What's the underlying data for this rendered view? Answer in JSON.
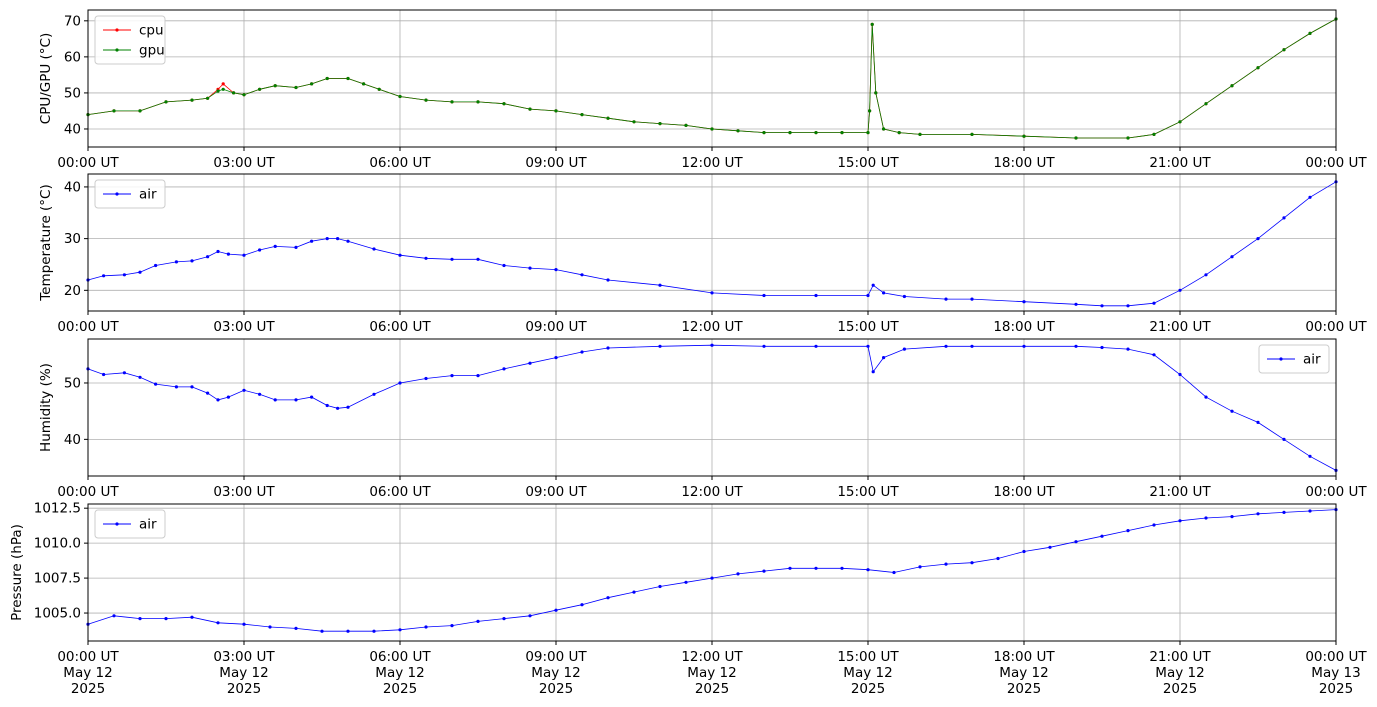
{
  "chart_data": [
    {
      "type": "line",
      "ylabel": "CPU/GPU (°C)",
      "ylim": [
        35,
        73
      ],
      "yticks": [
        40,
        50,
        60,
        70
      ],
      "x_unit": "hours since 00:00 UT May 12 2025",
      "xlim": [
        0,
        24
      ],
      "xtick_labels": [
        "00:00 UT",
        "03:00 UT",
        "06:00 UT",
        "09:00 UT",
        "12:00 UT",
        "15:00 UT",
        "18:00 UT",
        "21:00 UT",
        "00:00 UT"
      ],
      "grid": true,
      "legend": "top-left",
      "series": [
        {
          "name": "cpu",
          "color": "#ff0000",
          "x": [
            0,
            0.5,
            1,
            1.5,
            2,
            2.3,
            2.5,
            2.6,
            2.8,
            3,
            3.3,
            3.6,
            4,
            4.3,
            4.6,
            5,
            5.3,
            5.6,
            6,
            6.5,
            7,
            7.5,
            8,
            8.5,
            9,
            9.5,
            10,
            10.5,
            11,
            11.5,
            12,
            12.5,
            13,
            13.5,
            14,
            14.5,
            15,
            15.03,
            15.08,
            15.15,
            15.3,
            15.6,
            16,
            17,
            18,
            19,
            20,
            20.5,
            21,
            21.5,
            22,
            22.5,
            23,
            23.5,
            24
          ],
          "values": [
            44,
            45,
            45,
            47.5,
            48,
            48.5,
            51,
            52.5,
            50,
            49.5,
            51,
            52,
            51.5,
            52.5,
            54,
            54,
            52.5,
            51,
            49,
            48,
            47.5,
            47.5,
            47,
            45.5,
            45,
            44,
            43,
            42,
            41.5,
            41,
            40,
            39.5,
            39,
            39,
            39,
            39,
            39,
            45,
            69,
            50,
            40,
            39,
            38.5,
            38.5,
            38,
            37.5,
            37.5,
            38.5,
            42,
            47,
            52,
            57,
            62,
            66.5,
            70.5
          ]
        },
        {
          "name": "gpu",
          "color": "#008000",
          "x": [
            0,
            0.5,
            1,
            1.5,
            2,
            2.3,
            2.5,
            2.6,
            2.8,
            3,
            3.3,
            3.6,
            4,
            4.3,
            4.6,
            5,
            5.3,
            5.6,
            6,
            6.5,
            7,
            7.5,
            8,
            8.5,
            9,
            9.5,
            10,
            10.5,
            11,
            11.5,
            12,
            12.5,
            13,
            13.5,
            14,
            14.5,
            15,
            15.03,
            15.08,
            15.15,
            15.3,
            15.6,
            16,
            17,
            18,
            19,
            20,
            20.5,
            21,
            21.5,
            22,
            22.5,
            23,
            23.5,
            24
          ],
          "values": [
            44,
            45,
            45,
            47.5,
            48,
            48.5,
            50.5,
            51,
            50,
            49.5,
            51,
            52,
            51.5,
            52.5,
            54,
            54,
            52.5,
            51,
            49,
            48,
            47.5,
            47.5,
            47,
            45.5,
            45,
            44,
            43,
            42,
            41.5,
            41,
            40,
            39.5,
            39,
            39,
            39,
            39,
            39,
            45,
            69,
            50,
            40,
            39,
            38.5,
            38.5,
            38,
            37.5,
            37.5,
            38.5,
            42,
            47,
            52,
            57,
            62,
            66.5,
            70.5
          ]
        }
      ]
    },
    {
      "type": "line",
      "ylabel": "Temperature (°C)",
      "ylim": [
        16,
        42.5
      ],
      "yticks": [
        20,
        30,
        40
      ],
      "x_unit": "hours since 00:00 UT May 12 2025",
      "xlim": [
        0,
        24
      ],
      "xtick_labels": [
        "00:00 UT",
        "03:00 UT",
        "06:00 UT",
        "09:00 UT",
        "12:00 UT",
        "15:00 UT",
        "18:00 UT",
        "21:00 UT",
        "00:00 UT"
      ],
      "grid": true,
      "legend": "top-left",
      "series": [
        {
          "name": "air",
          "color": "#0000ff",
          "x": [
            0,
            0.3,
            0.7,
            1,
            1.3,
            1.7,
            2,
            2.3,
            2.5,
            2.7,
            3,
            3.3,
            3.6,
            4,
            4.3,
            4.6,
            4.8,
            5,
            5.5,
            6,
            6.5,
            7,
            7.5,
            8,
            8.5,
            9,
            9.5,
            10,
            11,
            12,
            13,
            14,
            15,
            15.1,
            15.3,
            15.7,
            16.5,
            17,
            18,
            19,
            19.5,
            20,
            20.5,
            21,
            21.5,
            22,
            22.5,
            23,
            23.5,
            24
          ],
          "values": [
            22,
            22.8,
            23,
            23.5,
            24.8,
            25.5,
            25.7,
            26.5,
            27.5,
            27,
            26.8,
            27.8,
            28.5,
            28.3,
            29.5,
            30,
            30,
            29.5,
            28,
            26.8,
            26.2,
            26,
            26,
            24.8,
            24.3,
            24,
            23,
            22,
            21,
            19.5,
            19,
            19,
            19,
            21,
            19.5,
            18.8,
            18.3,
            18.3,
            17.8,
            17.3,
            17,
            17,
            17.5,
            20,
            23,
            26.5,
            30,
            34,
            38,
            41
          ]
        }
      ]
    },
    {
      "type": "line",
      "ylabel": "Humidity (%)",
      "ylim": [
        33.5,
        57.8
      ],
      "yticks": [
        40,
        50
      ],
      "x_unit": "hours since 00:00 UT May 12 2025",
      "xlim": [
        0,
        24
      ],
      "xtick_labels": [
        "00:00 UT",
        "03:00 UT",
        "06:00 UT",
        "09:00 UT",
        "12:00 UT",
        "15:00 UT",
        "18:00 UT",
        "21:00 UT",
        "00:00 UT"
      ],
      "grid": true,
      "legend": "top-right",
      "series": [
        {
          "name": "air",
          "color": "#0000ff",
          "x": [
            0,
            0.3,
            0.7,
            1,
            1.3,
            1.7,
            2,
            2.3,
            2.5,
            2.7,
            3,
            3.3,
            3.6,
            4,
            4.3,
            4.6,
            4.8,
            5,
            5.5,
            6,
            6.5,
            7,
            7.5,
            8,
            8.5,
            9,
            9.5,
            10,
            11,
            12,
            13,
            14,
            15,
            15.1,
            15.3,
            15.7,
            16.5,
            17,
            18,
            19,
            19.5,
            20,
            20.5,
            21,
            21.5,
            22,
            22.5,
            23,
            23.5,
            24
          ],
          "values": [
            52.5,
            51.5,
            51.8,
            51,
            49.8,
            49.3,
            49.3,
            48.2,
            47,
            47.5,
            48.7,
            48,
            47,
            47,
            47.5,
            46,
            45.5,
            45.7,
            48,
            50,
            50.8,
            51.3,
            51.3,
            52.5,
            53.5,
            54.5,
            55.5,
            56.2,
            56.5,
            56.7,
            56.5,
            56.5,
            56.5,
            52,
            54.5,
            56,
            56.5,
            56.5,
            56.5,
            56.5,
            56.3,
            56,
            55,
            51.5,
            47.5,
            45,
            43,
            40,
            37,
            34.5
          ]
        }
      ]
    },
    {
      "type": "line",
      "ylabel": "Pressure (hPa)",
      "ylim": [
        1003,
        1012.8
      ],
      "yticks": [
        1005,
        1007.5,
        1010,
        1012.5
      ],
      "ytick_labels": [
        "1005.0",
        "1007.5",
        "1010.0",
        "1012.5"
      ],
      "x_unit": "hours since 00:00 UT May 12 2025",
      "xlim": [
        0,
        24
      ],
      "xtick_labels": [
        [
          "00:00 UT",
          "May 12",
          "2025"
        ],
        [
          "03:00 UT",
          "May 12",
          "2025"
        ],
        [
          "06:00 UT",
          "May 12",
          "2025"
        ],
        [
          "09:00 UT",
          "May 12",
          "2025"
        ],
        [
          "12:00 UT",
          "May 12",
          "2025"
        ],
        [
          "15:00 UT",
          "May 12",
          "2025"
        ],
        [
          "18:00 UT",
          "May 12",
          "2025"
        ],
        [
          "21:00 UT",
          "May 12",
          "2025"
        ],
        [
          "00:00 UT",
          "May 13",
          "2025"
        ]
      ],
      "grid": true,
      "legend": "top-left",
      "series": [
        {
          "name": "air",
          "color": "#0000ff",
          "x": [
            0,
            0.5,
            1,
            1.5,
            2,
            2.5,
            3,
            3.5,
            4,
            4.5,
            5,
            5.5,
            6,
            6.5,
            7,
            7.5,
            8,
            8.5,
            9,
            9.5,
            10,
            10.5,
            11,
            11.5,
            12,
            12.5,
            13,
            13.5,
            14,
            14.5,
            15,
            15.5,
            16,
            16.5,
            17,
            17.5,
            18,
            18.5,
            19,
            19.5,
            20,
            20.5,
            21,
            21.5,
            22,
            22.5,
            23,
            23.5,
            24
          ],
          "values": [
            1004.2,
            1004.8,
            1004.6,
            1004.6,
            1004.7,
            1004.3,
            1004.2,
            1004,
            1003.9,
            1003.7,
            1003.7,
            1003.7,
            1003.8,
            1004,
            1004.1,
            1004.4,
            1004.6,
            1004.8,
            1005.2,
            1005.6,
            1006.1,
            1006.5,
            1006.9,
            1007.2,
            1007.5,
            1007.8,
            1008,
            1008.2,
            1008.2,
            1008.2,
            1008.1,
            1007.9,
            1008.3,
            1008.5,
            1008.6,
            1008.9,
            1009.4,
            1009.7,
            1010.1,
            1010.5,
            1010.9,
            1011.3,
            1011.6,
            1011.8,
            1011.9,
            1012.1,
            1012.2,
            1012.3,
            1012.4
          ]
        }
      ]
    }
  ]
}
